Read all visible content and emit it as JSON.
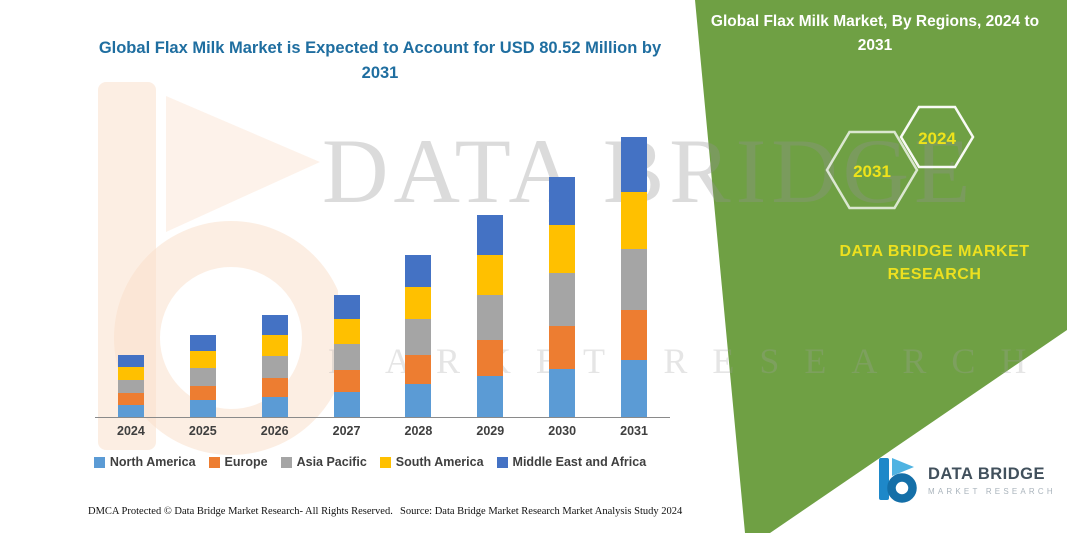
{
  "header": {
    "title": "Global Flax Milk Market is Expected to Account for USD 80.52 Million by 2031",
    "title_color": "#1F6EA0"
  },
  "side_panel": {
    "heading": "Global Flax Milk Market, By Regions, 2024 to 2031",
    "bg_color": "#6FA044",
    "hexagon_years": [
      "2031",
      "2024"
    ],
    "year_color": "#EFE31A",
    "brand_text": "DATA BRIDGE MARKET RESEARCH",
    "brand_color": "#EDE01F"
  },
  "watermark": {
    "line1": "DATA BRIDGE",
    "line2": "MARKET RESEARCH"
  },
  "footer": {
    "dmca": "DMCA Protected © Data Bridge Market Research-  All Rights Reserved.",
    "source": "Source: Data Bridge Market Research  Market Analysis Study 2024"
  },
  "logo": {
    "name": "DATA BRIDGE",
    "sub": "MARKET RESEARCH"
  },
  "chart_data": {
    "type": "bar",
    "stacked": true,
    "title": "Global Flax Milk Market is Expected to Account for USD 80.52 Million by 2031",
    "unit": "USD Million",
    "xlabel": "",
    "ylabel": "",
    "grid": false,
    "legend_position": "bottom",
    "ylim": [
      0,
      90
    ],
    "total_2031": 80.52,
    "categories": [
      "2024",
      "2025",
      "2026",
      "2027",
      "2028",
      "2029",
      "2030",
      "2031"
    ],
    "series": [
      {
        "name": "North America",
        "color": "#5B9BD5",
        "values": [
          3.6,
          4.8,
          5.9,
          7.1,
          9.4,
          11.7,
          13.9,
          16.3
        ]
      },
      {
        "name": "Europe",
        "color": "#ED7D31",
        "values": [
          3.2,
          4.2,
          5.3,
          6.3,
          8.4,
          10.5,
          12.4,
          14.5
        ]
      },
      {
        "name": "Asia Pacific",
        "color": "#A5A5A5",
        "values": [
          3.9,
          5.2,
          6.4,
          7.7,
          10.3,
          12.8,
          15.2,
          17.7
        ]
      },
      {
        "name": "South America",
        "color": "#FFC000",
        "values": [
          3.6,
          4.8,
          5.9,
          7.1,
          9.4,
          11.7,
          13.9,
          16.3
        ]
      },
      {
        "name": "Middle East and Africa",
        "color": "#4472C4",
        "values": [
          3.5,
          4.6,
          5.8,
          6.9,
          9.1,
          11.4,
          13.6,
          15.8
        ]
      }
    ]
  }
}
